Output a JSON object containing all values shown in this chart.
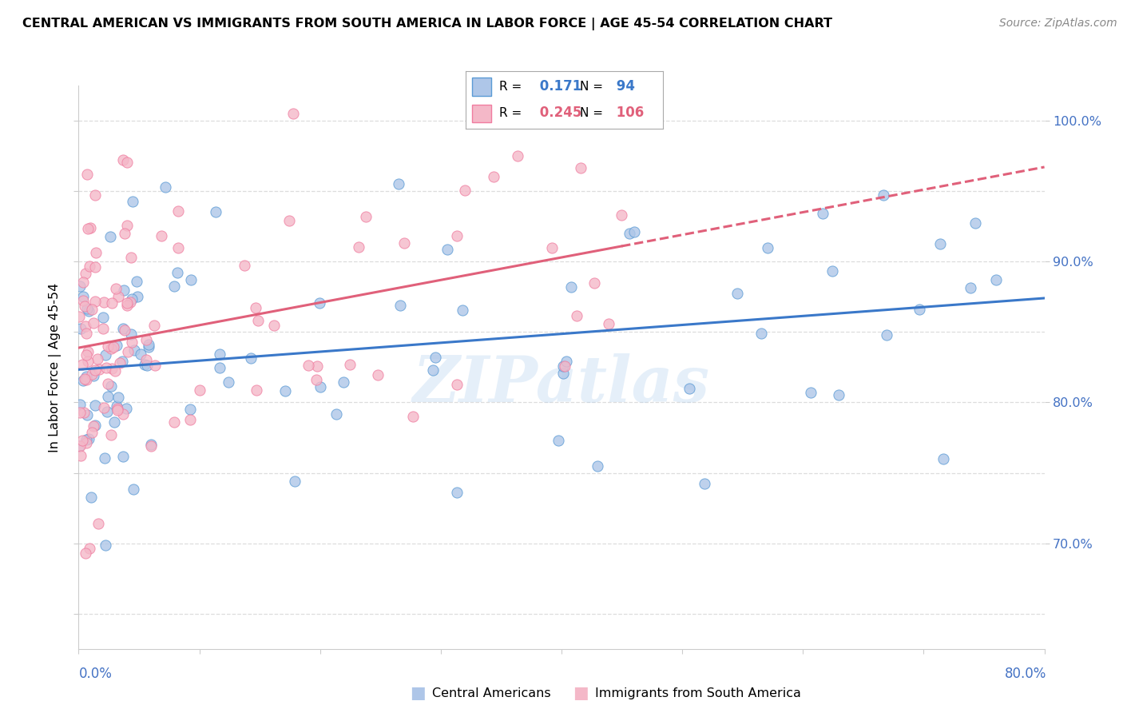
{
  "title": "CENTRAL AMERICAN VS IMMIGRANTS FROM SOUTH AMERICA IN LABOR FORCE | AGE 45-54 CORRELATION CHART",
  "source_text": "Source: ZipAtlas.com",
  "ylabel": "In Labor Force | Age 45-54",
  "blue_R": 0.171,
  "blue_N": 94,
  "pink_R": 0.245,
  "pink_N": 106,
  "blue_fill_color": "#aec6e8",
  "pink_fill_color": "#f4b8c8",
  "blue_edge_color": "#5b9bd5",
  "pink_edge_color": "#f07da0",
  "blue_line_color": "#3a78c9",
  "pink_line_color": "#e0607a",
  "tick_color": "#4472c4",
  "legend_label_blue": "Central Americans",
  "legend_label_pink": "Immigrants from South America",
  "watermark": "ZIPatlas",
  "xmin": 0.0,
  "xmax": 0.8,
  "ymin": 0.625,
  "ymax": 1.025,
  "right_yticks": [
    0.7,
    0.8,
    0.9,
    1.0
  ],
  "right_yticklabels": [
    "70.0%",
    "80.0%",
    "90.0%",
    "100.0%"
  ]
}
